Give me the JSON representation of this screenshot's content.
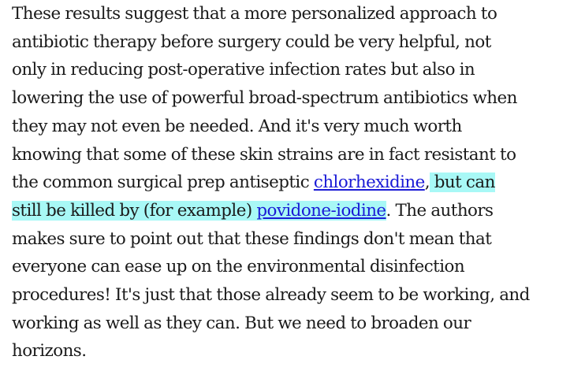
{
  "paragraph": {
    "l1": "These results suggest that a more personalized approach to",
    "l2": "antibiotic therapy before surgery could be very helpful, not",
    "l3": "only in reducing post-operative infection rates but also in",
    "l4": "lowering the use of powerful broad-spectrum antibiotics when",
    "l5": "they may not even be needed. And it's very much worth",
    "l6": "knowing that some of these skin strains are in fact resistant to",
    "l7_before": "the common surgical prep antiseptic ",
    "link_chlorhexidine": "chlorhexidine",
    "l7_comma": ",",
    "highlight_part1": " but can",
    "highlight_part2": "still be killed by (for example) ",
    "link_povidone": "povidone-iodine",
    "l8_after": ". The authors",
    "l9": "makes sure to point out that these findings don't mean that",
    "l10": "everyone can ease up on the environmental disinfection",
    "l11": "procedures! It's just that those already seem to be working, and",
    "l12": "working as well as they can. But we need to broaden our",
    "l13": "horizons."
  },
  "colors": {
    "text": "#1a1a1a",
    "link": "#1a1ad6",
    "highlight": "#a8f8f6"
  }
}
